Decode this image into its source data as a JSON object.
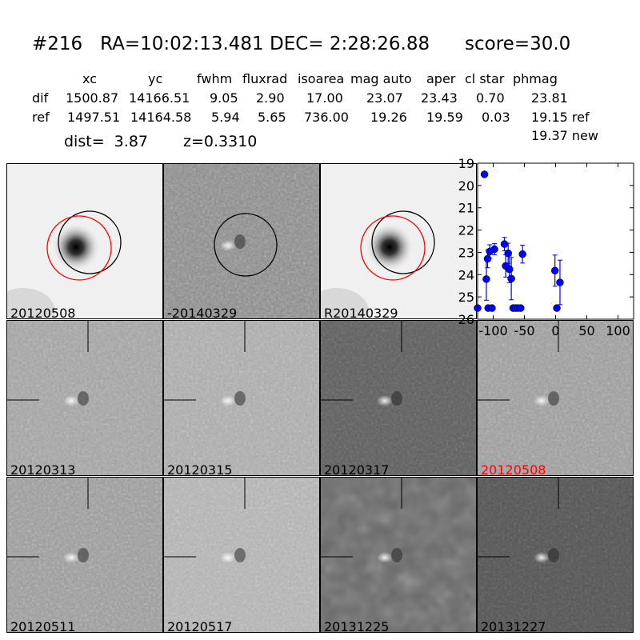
{
  "title": {
    "id": "#216",
    "ra": "RA=10:02:13.481",
    "dec": "DEC= 2:28:26.88",
    "score": "score=30.0"
  },
  "table": {
    "headers": [
      "xc",
      "yc",
      "fwhm",
      "fluxrad",
      "isoarea",
      "mag auto",
      "aper",
      "cl star",
      "phmag"
    ],
    "rows": [
      {
        "label": "dif",
        "values": [
          "1500.87",
          "14166.51",
          "9.05",
          "2.90",
          "17.00",
          "23.07",
          "23.43",
          "0.70",
          "23.81"
        ]
      },
      {
        "label": "ref",
        "values": [
          "1497.51",
          "14164.58",
          "5.94",
          "5.65",
          "736.00",
          "19.26",
          "19.59",
          "0.03",
          "19.15 ref"
        ]
      }
    ],
    "extra_phmag": "19.37 new"
  },
  "dist": "dist=  3.87",
  "z": "z=0.3310",
  "stamps": [
    {
      "label": "20120508",
      "kind": "ref"
    },
    {
      "label": "-20140329",
      "kind": "diff"
    },
    {
      "label": "R20140329",
      "kind": "ref"
    },
    {
      "label": "20120313",
      "kind": "epoch"
    },
    {
      "label": "20120315",
      "kind": "epoch"
    },
    {
      "label": "20120317",
      "kind": "epoch"
    },
    {
      "label": "20120508",
      "kind": "epoch",
      "highlight": "#ff0000"
    },
    {
      "label": "20120511",
      "kind": "epoch"
    },
    {
      "label": "20120517",
      "kind": "epoch"
    },
    {
      "label": "20131225",
      "kind": "epoch"
    },
    {
      "label": "20131227",
      "kind": "epoch"
    }
  ],
  "colors": {
    "points": "#0000ff",
    "circle_ref": "#ff0000",
    "circle_new": "#000000",
    "highlight_label": "#ff0000"
  },
  "chart_data": {
    "type": "scatter",
    "title": "",
    "xlabel": "",
    "ylabel": "",
    "xlim": [
      -125,
      125
    ],
    "ylim": [
      26,
      19
    ],
    "y_inverted": true,
    "xticks": [
      "-100",
      "-50",
      "0",
      "50",
      "100"
    ],
    "yticks": [
      "19",
      "20",
      "21",
      "22",
      "23",
      "24",
      "25",
      "26"
    ],
    "grid": false,
    "points": [
      {
        "x": -114,
        "y": 19.5,
        "err": 0
      },
      {
        "x": -125,
        "y": 25.5,
        "err": 0.1
      },
      {
        "x": -111,
        "y": 24.2,
        "err": 0.95
      },
      {
        "x": -109,
        "y": 23.29,
        "err": 0.4
      },
      {
        "x": -105.5,
        "y": 22.96,
        "err": 0.3
      },
      {
        "x": -98,
        "y": 22.86,
        "err": 0.25
      },
      {
        "x": -108,
        "y": 25.5,
        "err": 0.1
      },
      {
        "x": -102,
        "y": 25.5,
        "err": 0.1
      },
      {
        "x": -82,
        "y": 22.63,
        "err": 0.3
      },
      {
        "x": -80,
        "y": 23.61,
        "err": 0.5
      },
      {
        "x": -76,
        "y": 23.04,
        "err": 0.45
      },
      {
        "x": -74,
        "y": 23.76,
        "err": 0.6
      },
      {
        "x": -71,
        "y": 24.18,
        "err": 0.95
      },
      {
        "x": -68,
        "y": 25.5,
        "err": 0.1
      },
      {
        "x": -64,
        "y": 25.5,
        "err": 0.1
      },
      {
        "x": -60,
        "y": 25.5,
        "err": 0.1
      },
      {
        "x": -56,
        "y": 25.5,
        "err": 0.1
      },
      {
        "x": -53,
        "y": 23.08,
        "err": 0.4
      },
      {
        "x": -1,
        "y": 23.82,
        "err": 0.7
      },
      {
        "x": 2,
        "y": 25.5,
        "err": 0.1
      },
      {
        "x": 7,
        "y": 24.35,
        "err": 1.0
      }
    ]
  }
}
